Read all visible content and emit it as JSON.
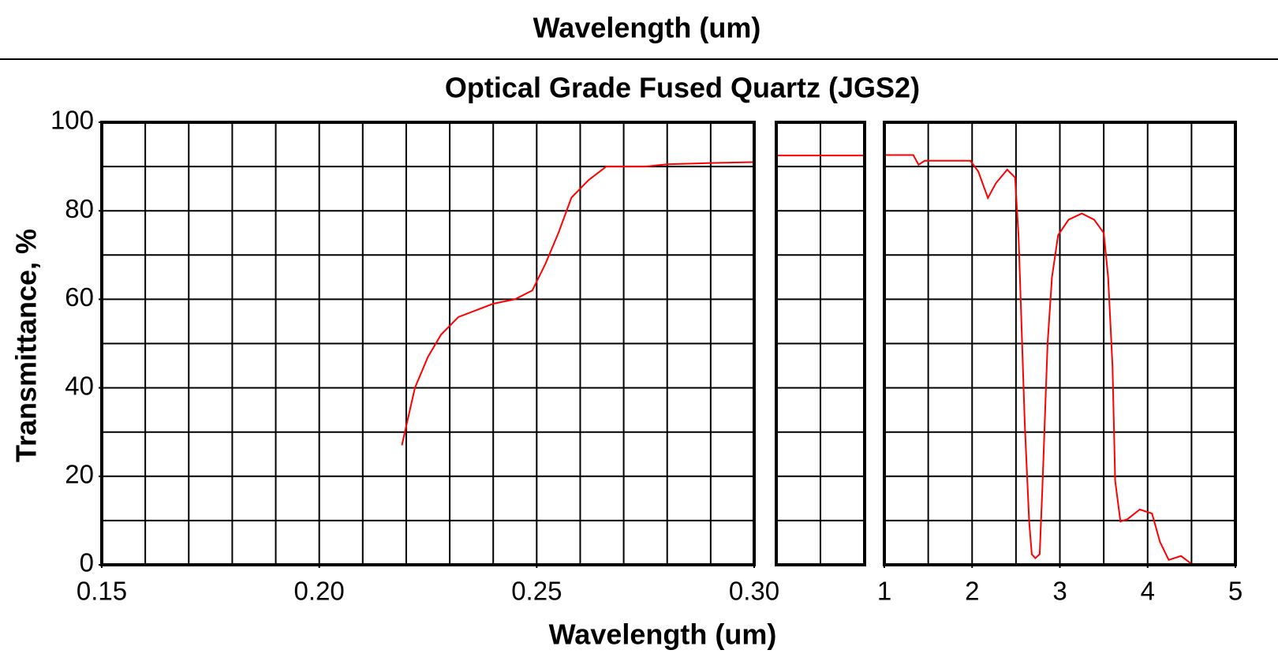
{
  "header": "Wavelength (um)",
  "chart_data": [
    {
      "type": "line",
      "title": "Optical Grade Fused Quartz  (JGS2)",
      "y_label": "Transmittance, %",
      "x_label": "Wavelength (um)",
      "xlim": [
        0.15,
        0.3
      ],
      "xticks": [
        0.15,
        {
          "value": 0.2,
          "label": "0.20"
        },
        0.25,
        {
          "value": 0.3,
          "label": "0.30"
        }
      ],
      "xgrid": [
        0.16,
        0.17,
        0.18,
        0.19,
        0.2,
        0.21,
        0.22,
        0.23,
        0.24,
        0.25,
        0.26,
        0.27,
        0.28,
        0.29
      ],
      "ylim": [
        0,
        100
      ],
      "yticks": [
        0,
        20,
        40,
        60,
        80,
        100
      ],
      "ygrid": [
        10,
        20,
        30,
        40,
        50,
        60,
        70,
        80,
        90
      ],
      "series": [
        {
          "color": "#ff0000",
          "x": [
            0.219,
            0.222,
            0.225,
            0.228,
            0.232,
            0.236,
            0.24,
            0.245,
            0.249,
            0.252,
            0.255,
            0.258,
            0.262,
            0.266,
            0.275,
            0.28,
            0.29,
            0.3
          ],
          "values": [
            27,
            40,
            47,
            52,
            56,
            57.5,
            59,
            60,
            62,
            68,
            75,
            83,
            87,
            90,
            90,
            90.5,
            90.8,
            91
          ]
        }
      ]
    },
    {
      "type": "line",
      "xlim": [
        0.3,
        0.32
      ],
      "xgrid": [
        0.31
      ],
      "ylim": [
        0,
        100
      ],
      "ygrid": [
        10,
        20,
        30,
        40,
        50,
        60,
        70,
        80,
        90
      ],
      "series": [
        {
          "color": "#ff0000",
          "x": [
            0.3,
            0.32
          ],
          "values": [
            92.5,
            92.5
          ]
        }
      ]
    },
    {
      "type": "line",
      "xlim": [
        1,
        5
      ],
      "xticks": [
        1,
        2,
        3,
        4,
        5
      ],
      "xgrid": [
        1.5,
        2,
        2.5,
        3,
        3.5,
        4,
        4.5
      ],
      "ylim": [
        0,
        100
      ],
      "ygrid": [
        10,
        20,
        30,
        40,
        50,
        60,
        70,
        80,
        90
      ],
      "series": [
        {
          "color": "#ff0000",
          "x": [
            1,
            1.33,
            1.39,
            1.46,
            1.98,
            2.07,
            2.18,
            2.27,
            2.4,
            2.49,
            2.53,
            2.6,
            2.65,
            2.68,
            2.72,
            2.77,
            2.8,
            2.86,
            2.91,
            2.98,
            3.1,
            3.25,
            3.39,
            3.5,
            3.55,
            3.6,
            3.63,
            3.69,
            3.77,
            3.91,
            4.05,
            4.14,
            4.24,
            4.38,
            4.5
          ],
          "values": [
            92.6,
            92.6,
            90.4,
            91.3,
            91.3,
            88.9,
            82.9,
            86.2,
            89.3,
            87.5,
            74,
            31.9,
            9.8,
            2.4,
            1.5,
            2.4,
            17,
            50,
            65,
            74.5,
            78,
            79.4,
            78,
            75,
            65,
            44.8,
            19,
            9.8,
            10.3,
            12.5,
            11.6,
            5.2,
            1.1,
            2,
            0.2
          ]
        }
      ]
    }
  ]
}
